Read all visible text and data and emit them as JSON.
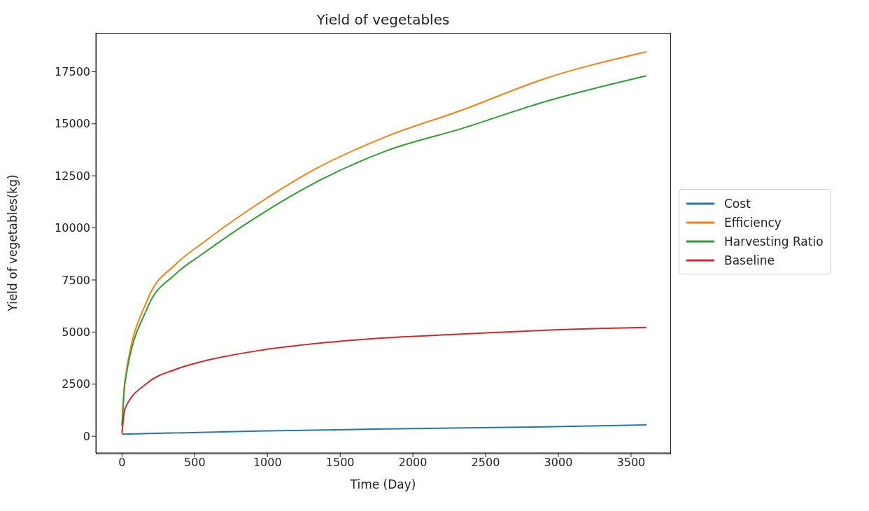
{
  "chart_data": {
    "type": "line",
    "title": "Yield of vegetables",
    "xlabel": "Time (Day)",
    "ylabel": "Yield of vegetables(kg)",
    "xlim": [
      -180,
      3770
    ],
    "ylim": [
      -800,
      19360
    ],
    "xticks": [
      0,
      500,
      1000,
      1500,
      2000,
      2500,
      3000,
      3500
    ],
    "yticks": [
      0,
      2500,
      5000,
      7500,
      10000,
      12500,
      15000,
      17500
    ],
    "grid": false,
    "legend": "right",
    "marker": "none",
    "line_style": "solid",
    "series": [
      {
        "name": "Cost",
        "color": "#1f77b4",
        "x": [
          0,
          938,
          1822,
          2909,
          3606
        ],
        "values": [
          100,
          250,
          350,
          450,
          540
        ]
      },
      {
        "name": "Efficiency",
        "color": "#ff7f0e",
        "x": [
          0,
          19,
          173,
          365,
          553,
          938,
          1322,
          1822,
          2332,
          2909,
          3606
        ],
        "values": [
          520,
          2600,
          6530,
          8230,
          9270,
          11170,
          12800,
          14400,
          15640,
          17170,
          18450
        ]
      },
      {
        "name": "Harvesting Ratio",
        "color": "#2ca02c",
        "x": [
          0,
          19,
          173,
          365,
          553,
          938,
          1322,
          1822,
          2332,
          2909,
          3606
        ],
        "values": [
          520,
          2500,
          6140,
          7770,
          8750,
          10580,
          12150,
          13710,
          14760,
          16060,
          17300
        ]
      },
      {
        "name": "Baseline",
        "color": "#d62728",
        "x": [
          0,
          19,
          173,
          365,
          553,
          938,
          1322,
          1822,
          2332,
          2909,
          3606
        ],
        "values": [
          130,
          1300,
          2550,
          3200,
          3590,
          4110,
          4440,
          4730,
          4900,
          5090,
          5220
        ]
      }
    ]
  }
}
